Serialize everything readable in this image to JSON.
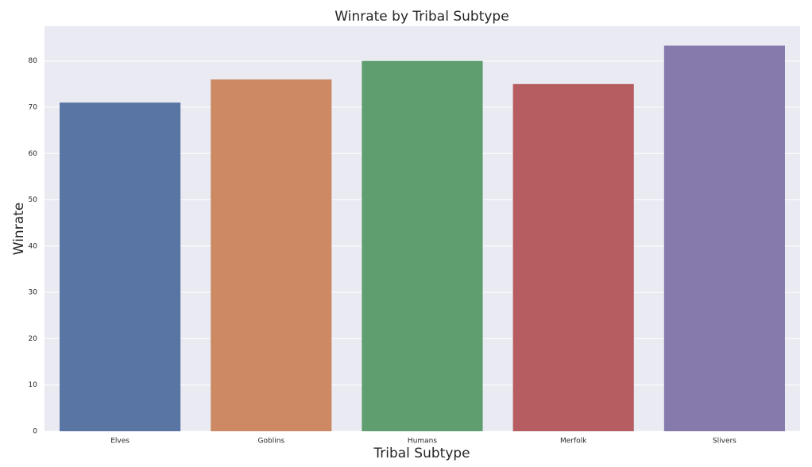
{
  "chart_data": {
    "type": "bar",
    "title": "Winrate by Tribal Subtype",
    "x_label": "Tribal Subtype",
    "y_label": "Winrate",
    "categories": [
      "Elves",
      "Goblins",
      "Humans",
      "Merfolk",
      "Slivers"
    ],
    "values": [
      71,
      76,
      80,
      75,
      83.3
    ],
    "colors": [
      "#5975a4",
      "#cc8963",
      "#5f9e6e",
      "#b55d60",
      "#857aab"
    ],
    "ylim": [
      0,
      87.5
    ],
    "yticks": [
      0,
      10,
      20,
      30,
      40,
      50,
      60,
      70,
      80
    ],
    "grid": true
  }
}
